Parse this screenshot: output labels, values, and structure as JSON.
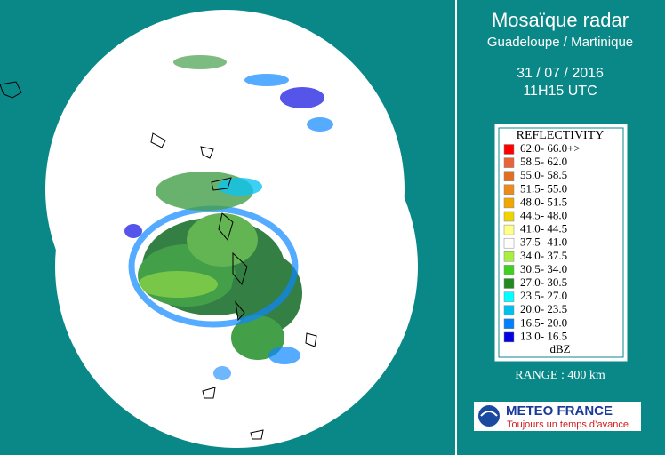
{
  "header": {
    "title": "Mosaïque radar",
    "subtitle": "Guadeloupe / Martinique",
    "date": "31 / 07 / 2016",
    "time": "11H15 UTC"
  },
  "legend": {
    "title": "REFLECTIVITY",
    "unit": "dBZ",
    "entries": [
      {
        "label": "62.0- 66.0+>",
        "color": "#ff0000"
      },
      {
        "label": "58.5- 62.0",
        "color": "#e8623a"
      },
      {
        "label": "55.0- 58.5",
        "color": "#e07020"
      },
      {
        "label": "51.5- 55.0",
        "color": "#ec8a1c"
      },
      {
        "label": "48.0- 51.5",
        "color": "#f0a800"
      },
      {
        "label": "44.5- 48.0",
        "color": "#f0d400"
      },
      {
        "label": "41.0- 44.5",
        "color": "#ffff88"
      },
      {
        "label": "37.5- 41.0",
        "color": "#ffffff"
      },
      {
        "label": "34.0- 37.5",
        "color": "#a8f040"
      },
      {
        "label": "30.5- 34.0",
        "color": "#40d020"
      },
      {
        "label": "27.0- 30.5",
        "color": "#208a20"
      },
      {
        "label": "23.5- 27.0",
        "color": "#00ffff"
      },
      {
        "label": "20.0- 23.5",
        "color": "#00c0f0"
      },
      {
        "label": "16.5- 20.0",
        "color": "#0080ff"
      },
      {
        "label": "13.0- 16.5",
        "color": "#0000e0"
      }
    ]
  },
  "range": "RANGE : 400 km",
  "logo": {
    "name": "METEO FRANCE",
    "tagline": "Toujours un temps d’avance"
  }
}
